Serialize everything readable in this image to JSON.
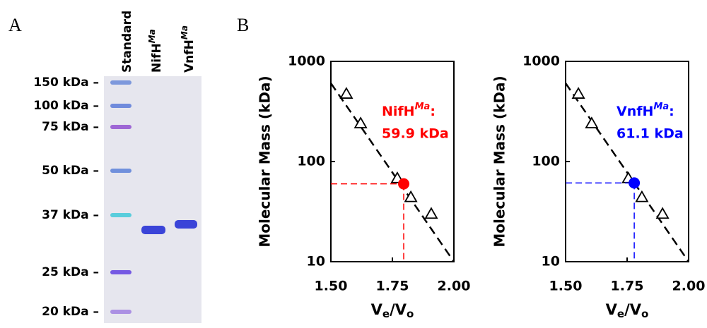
{
  "panels": {
    "A": "A",
    "B": "B"
  },
  "gel": {
    "lanes": [
      {
        "text": "Standard"
      },
      {
        "text": "NifH",
        "sup": "Ma"
      },
      {
        "text": "VnfH",
        "sup": "Ma"
      }
    ],
    "markers": [
      "150 kDa –",
      "100 kDa –",
      "75 kDa –",
      "50 kDa –",
      "37 kDa –",
      "25 kDa –",
      "20 kDa –"
    ]
  },
  "chart_data": [
    {
      "type": "scatter",
      "ylabel": "Molecular Mass (kDa)",
      "xlabel": [
        {
          "text": "V"
        },
        {
          "text": "e",
          "sub": true
        },
        {
          "text": "/V"
        },
        {
          "text": "o",
          "sub": true
        }
      ],
      "xlim": [
        1.5,
        2.0
      ],
      "ylim": [
        10,
        1000
      ],
      "log_y": true,
      "xticks": [
        {
          "value": 1.5,
          "label": "1.50"
        },
        {
          "value": 1.75,
          "label": "1.75"
        },
        {
          "value": 2.0,
          "label": "2.00"
        }
      ],
      "yticks": [
        10,
        100,
        1000
      ],
      "standards": {
        "x": [
          1.563,
          1.621,
          1.77,
          1.825,
          1.908
        ],
        "y": [
          474,
          240,
          68,
          44,
          30
        ]
      },
      "fit_line": {
        "x": [
          1.5,
          2.0
        ],
        "y": [
          605,
          10
        ]
      },
      "sample": {
        "x": 1.796,
        "y": 59.9,
        "color": "#ff0000",
        "name": "NifH",
        "name_sup": "Ma",
        "name_end": ":",
        "value_label": "59.9 kDa"
      }
    },
    {
      "type": "scatter",
      "ylabel": "Molecular Mass (kDa)",
      "xlabel": [
        {
          "text": "V"
        },
        {
          "text": "e",
          "sub": true
        },
        {
          "text": "/V"
        },
        {
          "text": "o",
          "sub": true
        }
      ],
      "xlim": [
        1.5,
        2.0
      ],
      "ylim": [
        10,
        1000
      ],
      "log_y": true,
      "xticks": [
        {
          "value": 1.5,
          "label": "1.50"
        },
        {
          "value": 1.75,
          "label": "1.75"
        },
        {
          "value": 2.0,
          "label": "2.00"
        }
      ],
      "yticks": [
        10,
        100,
        1000
      ],
      "standards": {
        "x": [
          1.552,
          1.606,
          1.755,
          1.81,
          1.894
        ],
        "y": [
          474,
          240,
          68,
          44,
          30
        ]
      },
      "fit_line": {
        "x": [
          1.5,
          2.0
        ],
        "y": [
          605,
          10
        ]
      },
      "sample": {
        "x": 1.779,
        "y": 61.1,
        "color": "#0000ff",
        "name": "VnfH",
        "name_sup": "Ma",
        "name_end": ":",
        "value_label": "61.1 kDa"
      }
    }
  ]
}
